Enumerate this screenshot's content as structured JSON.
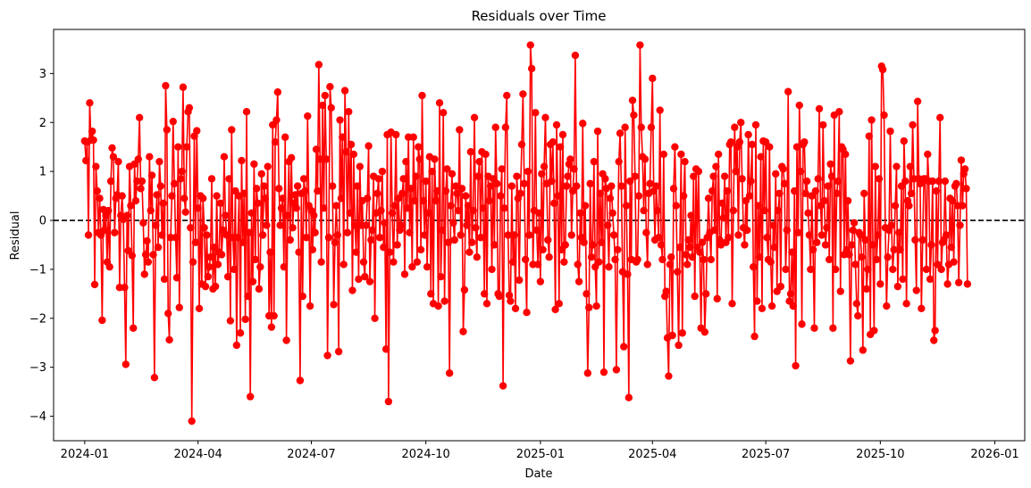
{
  "chart_data": {
    "type": "line",
    "title": "Residuals over Time",
    "xlabel": "Date",
    "ylabel": "Residual",
    "x_range": [
      "2023-12-07",
      "2026-01-25"
    ],
    "ylim": [
      -4.5,
      3.9
    ],
    "x_ticks": [
      "2024-01-01",
      "2024-04-01",
      "2024-07-01",
      "2024-10-01",
      "2025-01-01",
      "2025-04-01",
      "2025-07-01",
      "2025-10-01",
      "2026-01-01"
    ],
    "x_tick_labels": [
      "2024-01",
      "2024-04",
      "2024-07",
      "2024-10",
      "2025-01",
      "2025-04",
      "2025-07",
      "2025-10",
      "2026-01"
    ],
    "y_ticks": [
      -4,
      -3,
      -2,
      -1,
      0,
      1,
      2,
      3
    ],
    "y_tick_labels": [
      "−4",
      "−3",
      "−2",
      "−1",
      "0",
      "1",
      "2",
      "3"
    ],
    "grid": false,
    "reference_line": {
      "y": 0,
      "style": "dashed",
      "color": "#000000"
    },
    "series": [
      {
        "color": "#ff0000",
        "marker": "circle",
        "x_start": "2024-01-01",
        "x_step": "1 day",
        "values": [
          1.62,
          1.22,
          1.6,
          -0.3,
          2.4,
          1.64,
          1.82,
          1.64,
          -1.31,
          1.1,
          0.6,
          -0.25,
          0.45,
          -0.3,
          -2.04,
          0.22,
          -0.2,
          0.1,
          -0.85,
          0.2,
          -0.95,
          0.8,
          1.48,
          1.3,
          -0.25,
          0.45,
          0.52,
          1.2,
          -1.37,
          0.1,
          0.5,
          0.02,
          -1.37,
          -2.94,
          0.1,
          -0.62,
          1.1,
          0.3,
          -0.72,
          -2.2,
          1.15,
          0.4,
          0.8,
          1.25,
          2.1,
          0.65,
          0.8,
          -0.05,
          -1.1,
          -0.7,
          -0.42,
          -0.85,
          1.3,
          0.2,
          0.92,
          -0.7,
          -3.21,
          -0.1,
          0.52,
          -0.55,
          1.2,
          0.7,
          -0.3,
          0.35,
          -1.2,
          2.75,
          1.85,
          -1.9,
          -2.44,
          -0.35,
          0.5,
          2.02,
          0.75,
          -0.35,
          -1.17,
          1.5,
          -1.78,
          0.85,
          1.0,
          2.72,
          0.45,
          0.17,
          1.5,
          2.22,
          2.3,
          -0.15,
          -4.1,
          -0.85,
          1.72,
          -0.45,
          1.83,
          0.25,
          -1.8,
          0.5,
          -1.3,
          0.45,
          -0.15,
          -1.35,
          -0.3,
          -1.15,
          -0.95,
          -0.75,
          0.85,
          -1.4,
          -0.55,
          -1.35,
          0.5,
          -0.9,
          -0.65,
          0.35,
          -0.7,
          -0.2,
          1.3,
          0.1,
          -0.3,
          -1.15,
          0.85,
          -2.05,
          1.85,
          -0.35,
          -1.0,
          0.6,
          -2.55,
          -0.35,
          0.5,
          -2.3,
          1.22,
          -0.45,
          0.55,
          -2.02,
          2.22,
          -1.55,
          -0.25,
          -3.6,
          0.15,
          -1.25,
          1.15,
          -0.8,
          0.65,
          0.35,
          -1.4,
          -0.95,
          0.95,
          -0.3,
          0.7,
          0.45,
          -0.1,
          1.1,
          -1.95,
          -0.65,
          -2.18,
          1.95,
          -1.95,
          1.6,
          2.05,
          2.62,
          0.65,
          -0.1,
          0.25,
          0.45,
          -0.95,
          1.7,
          -2.45,
          0.1,
          1.2,
          -0.4,
          1.28,
          -0.15,
          0.35,
          0.52,
          0.25,
          0.7,
          -0.65,
          -3.27,
          0.55,
          -1.55,
          0.85,
          0.6,
          -0.35,
          2.13,
          0.3,
          -1.75,
          0.2,
          -0.6,
          0.1,
          -0.25,
          1.45,
          0.6,
          3.18,
          1.25,
          -0.85,
          2.35,
          0.25,
          2.55,
          1.25,
          -2.76,
          -0.35,
          2.73,
          2.3,
          0.7,
          -1.72,
          -0.45,
          0.3,
          -0.3,
          -2.68,
          2.05,
          0.45,
          1.7,
          -0.9,
          2.65,
          1.4,
          -0.25,
          2.22,
          0.15,
          1.55,
          -1.43,
          1.35,
          -0.1,
          -0.65,
          0.7,
          -1.2,
          1.1,
          -0.1,
          0.4,
          -0.85,
          -1.15,
          -0.1,
          0.45,
          1.52,
          -1.25,
          -0.4,
          -0.2,
          0.9,
          -2.0,
          0.15,
          0.55,
          0.85,
          -0.35,
          0.2,
          1.0,
          -0.55,
          -0.05,
          -2.63,
          1.75,
          -3.7,
          -0.65,
          1.8,
          0.15,
          -0.85,
          0.3,
          1.75,
          -0.5,
          0.45,
          -0.2,
          -0.1,
          0.55,
          0.85,
          -1.1,
          1.2,
          0.25,
          1.7,
          -0.25,
          0.65,
          -0.95,
          1.7,
          0.4,
          0.9,
          -0.85,
          1.5,
          1.25,
          -0.6,
          2.55,
          0.4,
          -0.3,
          0.8,
          -0.95,
          0.15,
          1.3,
          -1.5,
          1.0,
          -1.7,
          1.25,
          0.4,
          0.6,
          -1.75,
          2.4,
          -1.15,
          -0.2,
          2.2,
          -1.65,
          0.6,
          1.05,
          -0.45,
          -3.12,
          0.3,
          0.95,
          -0.05,
          -0.4,
          0.7,
          0.55,
          0.2,
          1.85,
          -0.3,
          0.65,
          -2.27,
          -1.42,
          0.5,
          -0.1,
          0.3,
          -0.65,
          1.4,
          -0.45,
          0.2,
          2.1,
          -0.15,
          -0.75,
          0.9,
          1.2,
          -0.35,
          1.4,
          0.25,
          -1.5,
          1.35,
          -1.7,
          0.9,
          0.4,
          0.7,
          -1.0,
          0.85,
          -0.5,
          1.9,
          0.75,
          -1.5,
          -1.55,
          0.5,
          1.05,
          -3.38,
          0.25,
          1.9,
          2.55,
          -0.3,
          -1.53,
          -1.65,
          0.7,
          -0.85,
          -0.3,
          -1.8,
          0.9,
          0.45,
          -1.22,
          0.55,
          1.55,
          2.58,
          0.75,
          -0.8,
          -1.88,
          1.0,
          -0.3,
          3.58,
          3.1,
          -0.9,
          0.2,
          2.2,
          -0.2,
          -0.9,
          0.15,
          -1.25,
          0.95,
          -0.6,
          1.1,
          2.1,
          0.75,
          -0.4,
          -0.75,
          1.55,
          0.8,
          1.6,
          0.35,
          -1.82,
          1.95,
          0.5,
          -1.7,
          1.5,
          -0.6,
          1.75,
          -0.85,
          -0.5,
          0.7,
          0.9,
          1.15,
          1.25,
          -0.3,
          0.6,
          1.05,
          3.37,
          0.7,
          -0.9,
          -1.25,
          0.15,
          -0.35,
          1.98,
          -0.45,
          0.3,
          -1.5,
          -3.12,
          -1.78,
          0.75,
          -0.75,
          -0.5,
          1.2,
          -0.95,
          -1.75,
          1.82,
          -0.85,
          0.55,
          -0.45,
          0.95,
          -3.1,
          0.85,
          0.65,
          -0.1,
          -0.95,
          0.45,
          0.7,
          0.15,
          -0.3,
          -0.8,
          -3.05,
          -0.6,
          1.2,
          1.78,
          0.7,
          -1.05,
          -2.58,
          1.9,
          0.3,
          -1.1,
          -3.62,
          0.8,
          -0.8,
          2.45,
          2.15,
          0.9,
          -0.85,
          -0.8,
          0.5,
          3.58,
          1.9,
          1.3,
          0.2,
          1.25,
          -0.25,
          -0.9,
          0.55,
          0.75,
          1.9,
          2.9,
          0.6,
          -0.4,
          0.7,
          0.2,
          -0.35,
          2.25,
          -0.5,
          -0.8,
          1.35,
          -1.55,
          -1.45,
          -2.4,
          -3.18,
          -0.9,
          -0.75,
          -2.35,
          0.65,
          1.5,
          0.3,
          -1.05,
          -2.55,
          -0.55,
          1.35,
          -2.3,
          0.5,
          1.2,
          -0.7,
          -0.9,
          -0.4,
          -0.55,
          0.1,
          -0.75,
          0.9,
          -1.55,
          1.05,
          -0.55,
          1.0,
          -0.65,
          -2.2,
          -0.45,
          -0.8,
          -2.28,
          -1.5,
          -0.35,
          0.45,
          -0.25,
          -0.8,
          0.6,
          0.9,
          -0.2,
          1.1,
          -1.6,
          1.35,
          -0.4,
          -0.5,
          0.35,
          0.05,
          0.9,
          -0.45,
          0.6,
          -0.35,
          1.55,
          1.6,
          -1.7,
          0.2,
          1.9,
          1.0,
          1.5,
          -0.3,
          1.6,
          2.0,
          0.85,
          -0.15,
          -0.5,
          0.4,
          -0.2,
          1.75,
          0.5,
          0.8,
          1.55,
          -0.95,
          -2.37,
          1.95,
          -1.65,
          0.3,
          -0.75,
          1.3,
          -1.8,
          1.62,
          0.2,
          1.6,
          -0.35,
          -0.8,
          1.5,
          -0.85,
          -1.75,
          -0.1,
          -0.55,
          0.95,
          -1.45,
          0.2,
          0.55,
          -1.35,
          1.1,
          1.05,
          0.75,
          -1.0,
          -0.2,
          2.63,
          -1.65,
          -1.5,
          -0.65,
          -1.75,
          0.6,
          -2.97,
          1.5,
          -0.25,
          2.35,
          1.0,
          -2.12,
          1.55,
          1.6,
          0.55,
          0.8,
          0.15,
          -0.3,
          -1.0,
          0.5,
          -0.6,
          -2.2,
          0.6,
          -0.45,
          0.85,
          2.28,
          0.3,
          -0.3,
          1.95,
          0.4,
          -0.5,
          -0.15,
          0.7,
          -0.8,
          1.15,
          0.9,
          -2.2,
          2.15,
          -1.0,
          0.55,
          0.8,
          2.22,
          -1.45,
          1.5,
          1.45,
          -0.7,
          1.35,
          -0.6,
          0.4,
          -0.7,
          -2.87,
          -0.5,
          -0.2,
          -0.05,
          -0.9,
          -1.7,
          -1.95,
          -0.25,
          -0.3,
          -0.75,
          -2.65,
          0.55,
          -0.4,
          -1.4,
          -1.0,
          1.72,
          -2.33,
          2.05,
          -0.5,
          -2.25,
          1.1,
          -0.8,
          -0.3,
          0.85,
          -1.3,
          3.15,
          3.08,
          2.15,
          -0.15,
          -1.75,
          -0.75,
          -0.2,
          1.82,
          -0.1,
          -1.0,
          -0.6,
          0.3,
          1.1,
          -1.35,
          -0.25,
          -0.6,
          0.7,
          -1.2,
          1.62,
          0.8,
          -1.7,
          0.4,
          0.3,
          1.1,
          0.55,
          1.95,
          0.85,
          -0.4,
          -1.43,
          2.43,
          0.85,
          0.75,
          -1.8,
          -0.4,
          0.85,
          0.85,
          -1.0,
          1.35,
          0.8,
          -1.2,
          -0.5,
          0.8,
          -2.45,
          -2.25,
          0.6,
          -0.9,
          0.8,
          2.1,
          -1.0,
          -0.45,
          -0.4,
          0.8,
          -0.3,
          -1.3,
          -0.9,
          0.45,
          -0.55,
          0.4,
          -0.85,
          0.7,
          0.75,
          0.3,
          -1.27,
          -0.1,
          1.23,
          0.3,
          0.95,
          1.05,
          0.65,
          -1.3
        ]
      }
    ]
  }
}
